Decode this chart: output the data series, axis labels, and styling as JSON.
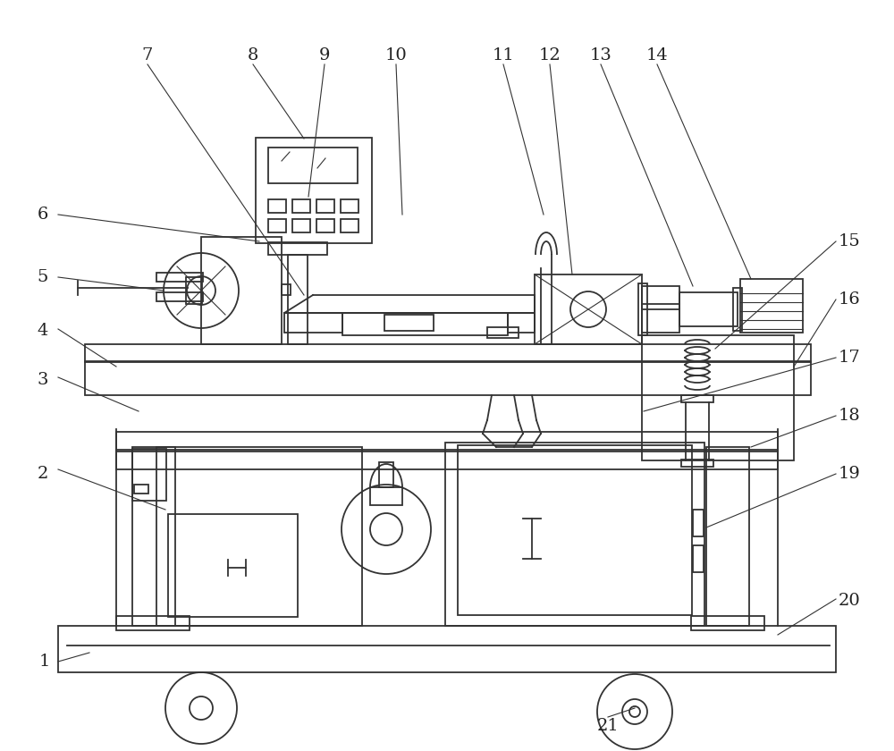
{
  "bg_color": "#ffffff",
  "lc": "#333333",
  "lw": 1.3,
  "lw_thin": 0.8,
  "label_fs": 14,
  "label_color": "#222222"
}
